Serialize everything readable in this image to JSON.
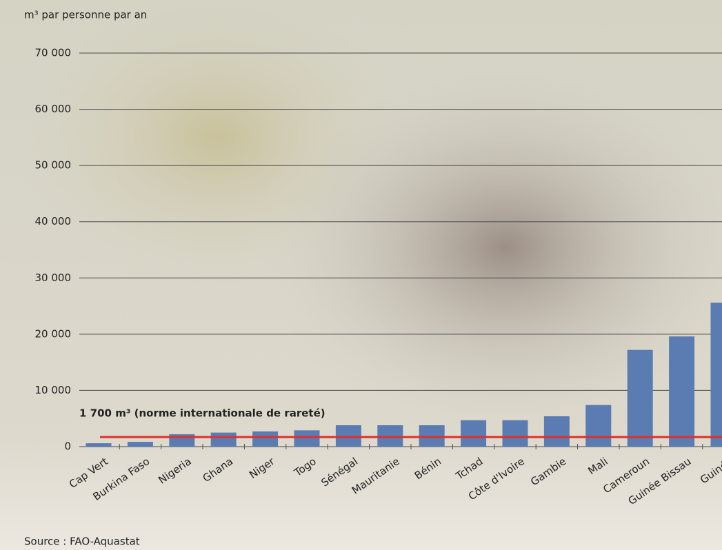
{
  "chart_data": {
    "type": "bar",
    "axis_title": "m³ par personne par an",
    "categories": [
      "Cap Vert",
      "Burkina Faso",
      "Nigeria",
      "Ghana",
      "Niger",
      "Togo",
      "Sénégal",
      "Mauritanie",
      "Bénin",
      "Tchad",
      "Côte d'Ivoire",
      "Gambie",
      "Mali",
      "Cameroun",
      "Guinée Bissau",
      "Guinée"
    ],
    "values": [
      600,
      850,
      2200,
      2500,
      2700,
      2900,
      3800,
      3800,
      3800,
      4700,
      4700,
      5400,
      7400,
      17200,
      19600,
      25600
    ],
    "color": "#5a7cb3",
    "ylim": [
      0,
      70000
    ],
    "yticks": [
      0,
      {
        "value": 10000,
        "label": "10 000"
      },
      {
        "value": 20000,
        "label": "20 000"
      },
      {
        "value": 30000,
        "label": "30 000"
      },
      {
        "value": 40000,
        "label": "40 000"
      },
      {
        "value": 50000,
        "label": "50 000"
      },
      {
        "value": 60000,
        "label": "60 000"
      },
      {
        "value": 70000,
        "label": "70 000"
      }
    ],
    "grid": true,
    "reference_line": {
      "value": 1700,
      "label": "1 700 m³ (norme internationale de rareté)",
      "color": "#e0302a"
    },
    "source": "Source : FAO-Aquastat"
  }
}
